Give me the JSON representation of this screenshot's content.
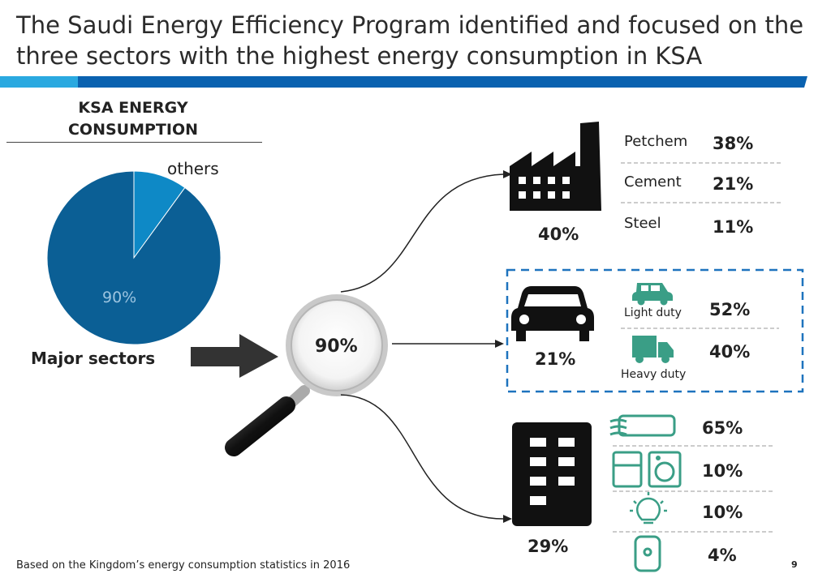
{
  "title": "The Saudi Energy Efficiency Program identified and focused on the three sectors with the highest energy consumption in KSA",
  "chart_data": {
    "type": "pie",
    "title": "KSA ENERGY CONSUMPTION",
    "slices": [
      {
        "label": "Major sectors",
        "value": 90,
        "data_label": "90%",
        "color": "#0b5f95"
      },
      {
        "label": "others",
        "value": 10,
        "data_label": "",
        "color": "#0e89c6"
      }
    ]
  },
  "pie_labels": {
    "others": "others",
    "major": "Major sectors",
    "major_pct": "90%"
  },
  "magnifier_pct": "90%",
  "sectors": {
    "industry": {
      "pct": "40%",
      "rows": [
        {
          "label": "Petchem",
          "value": "38%"
        },
        {
          "label": "Cement",
          "value": "21%"
        },
        {
          "label": "Steel",
          "value": "11%"
        }
      ]
    },
    "transport": {
      "pct": "21%",
      "rows": [
        {
          "label": "Light duty",
          "value": "52%"
        },
        {
          "label": "Heavy duty",
          "value": "40%"
        }
      ]
    },
    "buildings": {
      "pct": "29%",
      "rows": [
        {
          "icon": "air-conditioner-icon",
          "value": "65%"
        },
        {
          "icon": "fridge-washer-icon",
          "value": "10%"
        },
        {
          "icon": "light-bulb-icon",
          "value": "10%"
        },
        {
          "icon": "water-heater-icon",
          "value": "4%"
        }
      ]
    }
  },
  "footnote": "Based on the Kingdom’s energy consumption statistics in 2016",
  "page_number": "9",
  "colors": {
    "pie_major": "#0b5f95",
    "pie_others": "#0e89c6",
    "stripe_dark": "#0a62b0",
    "stripe_light": "#2aa9e0",
    "dashed_box": "#1e73be",
    "appliance_green": "#3a9e86"
  }
}
